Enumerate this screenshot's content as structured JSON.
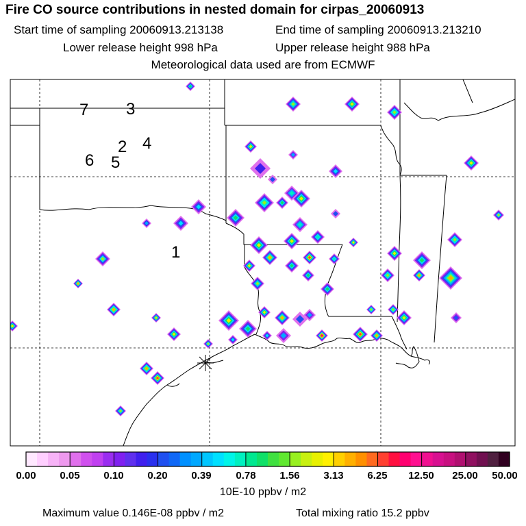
{
  "title": "Fire CO source contributions in nested domain for cirpas_20060913",
  "start_time": "Start time of sampling 20060913.213138",
  "end_time": "End time of sampling 20060913.213210",
  "lower_release": "Lower release height  998 hPa",
  "upper_release": "Upper release height  988 hPa",
  "met_data": "Meteorological data used are from ECMWF",
  "colorbar": {
    "labels": [
      "0.00",
      "0.05",
      "0.10",
      "0.20",
      "0.39",
      "0.78",
      "1.56",
      "3.13",
      "6.25",
      "12.50",
      "25.00",
      "50.00"
    ],
    "colors": [
      "#ffe8ff",
      "#ffcfff",
      "#f7b3f7",
      "#ee99ee",
      "#e070ec",
      "#d050ee",
      "#c040f0",
      "#9a2df0",
      "#8020f0",
      "#6030ee",
      "#4020ee",
      "#2a30ee",
      "#2050f0",
      "#1068f6",
      "#0090ff",
      "#00a8ff",
      "#00c6ff",
      "#00e0ff",
      "#00f4e8",
      "#00f0c0",
      "#00e890",
      "#10e068",
      "#40e040",
      "#60e830",
      "#98f020",
      "#c8f010",
      "#e8f000",
      "#fff000",
      "#ffd000",
      "#ffb000",
      "#ff9000",
      "#ff6a20",
      "#ff4030",
      "#ff1040",
      "#ff0070",
      "#ff1090",
      "#f01090",
      "#d81090",
      "#c81080",
      "#b01070",
      "#901060",
      "#701050",
      "#502040",
      "#300020"
    ],
    "units": "10E-10 ppbv / m2"
  },
  "max_value": "Maximum value  0.146E-08 ppbv / m2",
  "total_mixing": "Total mixing ratio       15.2 ppbv",
  "map": {
    "site_labels": [
      "1",
      "2",
      "3",
      "4",
      "5",
      "6",
      "7"
    ],
    "fire_spots": [
      {
        "level": 2.5
      },
      {
        "level": 2.8
      },
      {
        "level": 3.1
      },
      {
        "level": 2.9
      },
      {
        "level": 3.0
      },
      {
        "level": 1.5
      },
      {
        "level": 1.8
      },
      {
        "level": 3.1
      },
      {
        "level": 0.9
      },
      {
        "level": 1.2
      },
      {
        "level": 2.9
      },
      {
        "level": 3.0
      },
      {
        "level": 2.2
      },
      {
        "level": 2.0
      },
      {
        "level": 1.8
      },
      {
        "level": 1.6
      },
      {
        "level": 2.6
      },
      {
        "level": 2.2
      },
      {
        "level": 1.2
      },
      {
        "level": 2.3
      },
      {
        "level": 3.1
      },
      {
        "level": 3.2
      },
      {
        "level": 3.4
      },
      {
        "level": 3.7
      },
      {
        "level": 2.6
      },
      {
        "level": 3.2
      },
      {
        "level": 2.3
      },
      {
        "level": 3.0
      },
      {
        "level": 3.0
      },
      {
        "level": 2.5
      },
      {
        "level": 3.4
      },
      {
        "level": 3.3
      },
      {
        "level": 2.9
      },
      {
        "level": 2.7
      },
      {
        "level": 2.9
      },
      {
        "level": 2.4
      },
      {
        "level": 2.6
      },
      {
        "level": 2.8
      },
      {
        "level": 2.7
      },
      {
        "level": 3.4
      },
      {
        "level": 3.5
      },
      {
        "level": 3.1
      },
      {
        "level": 3.2
      },
      {
        "level": 3.0
      },
      {
        "level": 2.5
      },
      {
        "level": 3.0
      },
      {
        "level": 3.4
      },
      {
        "level": 1.2
      },
      {
        "level": 1.5
      },
      {
        "level": 2.0
      },
      {
        "level": 3.6
      },
      {
        "level": 3.4
      },
      {
        "level": 3.1
      },
      {
        "level": 2.9
      },
      {
        "level": 4.0
      },
      {
        "level": 3.5
      },
      {
        "level": 3.7
      },
      {
        "level": 2.8
      },
      {
        "level": 2.7
      },
      {
        "level": 3.0
      },
      {
        "level": 1.5
      },
      {
        "level": 1.8
      },
      {
        "level": 1.3
      },
      {
        "level": 2.9
      },
      {
        "level": 2.4
      }
    ]
  }
}
